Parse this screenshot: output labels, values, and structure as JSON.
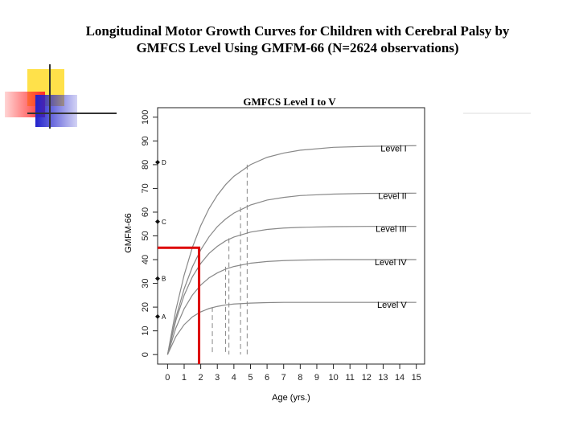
{
  "slide": {
    "title": [
      "Longitudinal Motor Growth Curves for Children with Cerebral Palsy by",
      "GMFCS Level Using GMFM-66 (N=2624 observations)"
    ]
  },
  "chart_data": {
    "type": "line",
    "title": "GMFCS Level I to V",
    "xlabel": "Age (yrs.)",
    "ylabel": "GMFM-66",
    "x": [
      0,
      0.5,
      1,
      1.5,
      2,
      2.5,
      3,
      3.5,
      4,
      5,
      6,
      7,
      8,
      10,
      12,
      15
    ],
    "series": [
      {
        "name": "Level I",
        "color": "#888888",
        "values": [
          0,
          18.8,
          33.5,
          45.2,
          54.3,
          61.5,
          67.1,
          71.6,
          75.1,
          80.0,
          83.1,
          84.9,
          86.1,
          87.3,
          87.7,
          88
        ]
      },
      {
        "name": "Level II",
        "color": "#888888",
        "values": [
          0,
          15.6,
          27.7,
          37.0,
          44.1,
          49.6,
          53.9,
          57.1,
          59.6,
          63.0,
          65.1,
          66.2,
          67.0,
          67.6,
          67.9,
          68
        ]
      },
      {
        "name": "Level III",
        "color": "#888888",
        "values": [
          0,
          14.4,
          25.0,
          32.8,
          38.4,
          42.6,
          45.6,
          47.9,
          49.5,
          51.6,
          52.7,
          53.3,
          53.6,
          53.9,
          54,
          54
        ]
      },
      {
        "name": "Level IV",
        "color": "#888888",
        "values": [
          0,
          11.2,
          19.3,
          25.1,
          29.3,
          32.3,
          34.4,
          36.0,
          37.1,
          38.5,
          39.2,
          39.6,
          39.8,
          40,
          40,
          40
        ]
      },
      {
        "name": "Level V",
        "color": "#888888",
        "values": [
          0,
          7.6,
          12.6,
          15.9,
          18.0,
          19.4,
          20.3,
          20.9,
          21.3,
          21.7,
          21.9,
          22,
          22,
          22,
          22,
          22
        ]
      }
    ],
    "reference_lines": [
      {
        "x": 4.8,
        "y": 80
      },
      {
        "x": 4.4,
        "y": 62
      },
      {
        "x": 3.7,
        "y": 49
      },
      {
        "x": 3.5,
        "y": 37
      },
      {
        "x": 2.7,
        "y": 20
      }
    ],
    "highlight": {
      "x": 1.9,
      "y": 45,
      "color": "#dd0000"
    },
    "axis_markers": [
      {
        "label": "A",
        "value": 16
      },
      {
        "label": "B",
        "value": 32
      },
      {
        "label": "C",
        "value": 56
      },
      {
        "label": "D",
        "value": 81
      }
    ],
    "xlim": [
      -0.6,
      15.5
    ],
    "ylim": [
      -4,
      104
    ],
    "xticks": [
      0,
      1,
      2,
      3,
      4,
      5,
      6,
      7,
      8,
      9,
      10,
      11,
      12,
      13,
      14,
      15
    ],
    "yticks": [
      0,
      10,
      20,
      30,
      40,
      50,
      60,
      70,
      80,
      90,
      100
    ]
  }
}
